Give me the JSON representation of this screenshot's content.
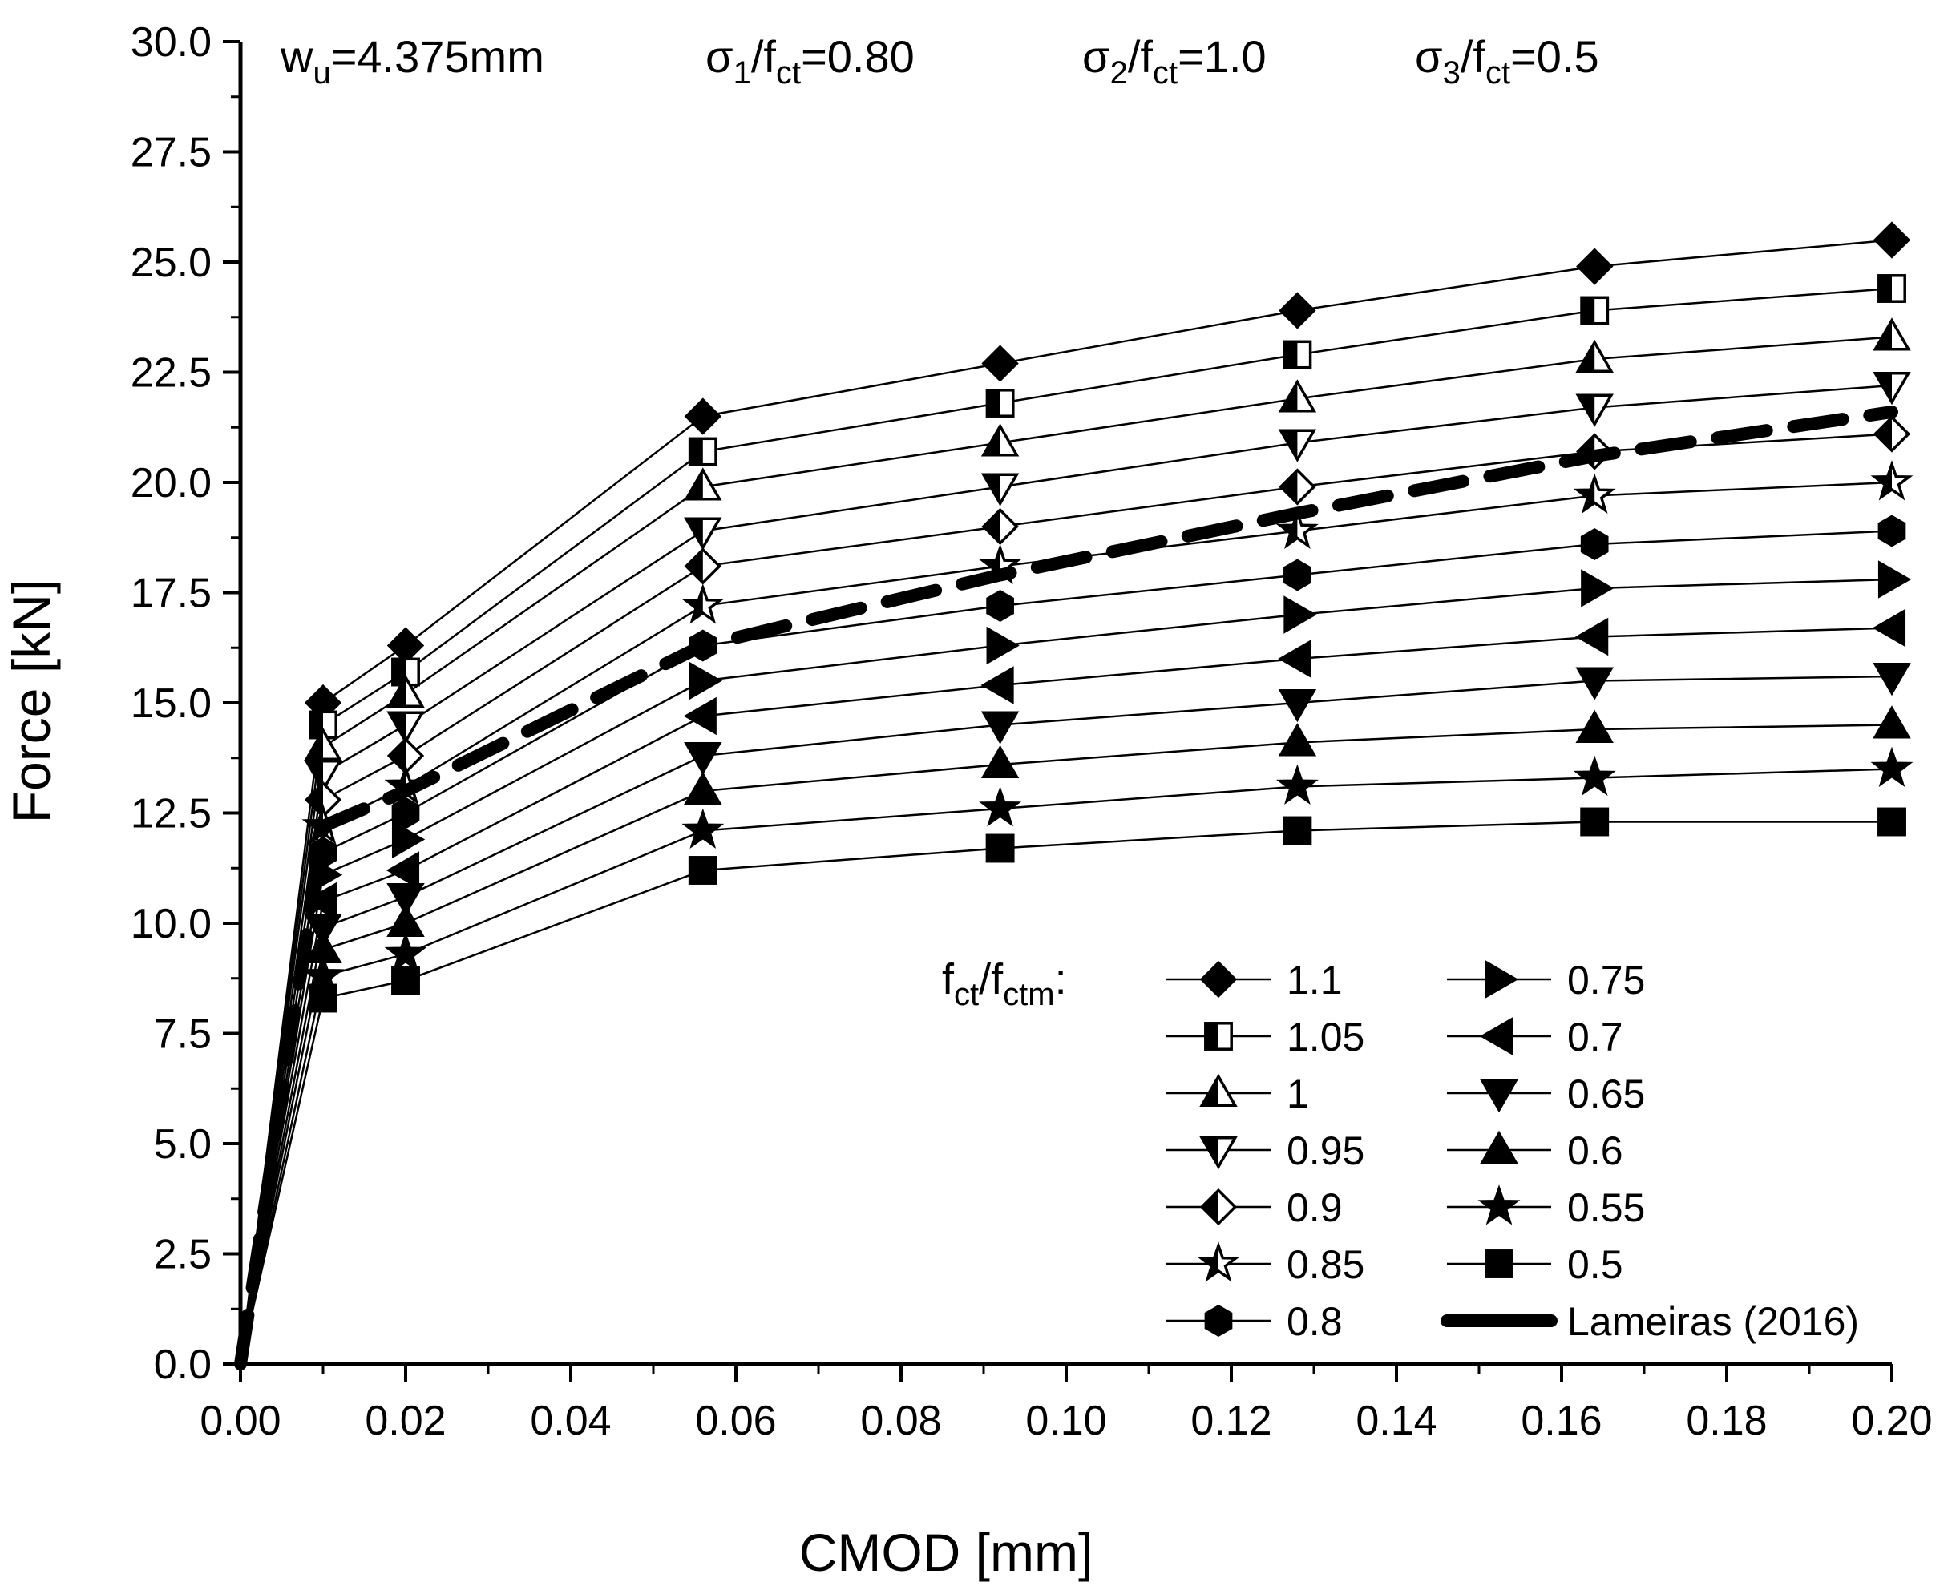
{
  "chart_data": {
    "type": "line",
    "title": "",
    "xlabel": "CMOD [mm]",
    "ylabel": "Force [kN]",
    "xlim": [
      0,
      0.2
    ],
    "ylim": [
      0,
      30
    ],
    "x_ticks": [
      "0.00",
      "0.02",
      "0.04",
      "0.06",
      "0.08",
      "0.10",
      "0.12",
      "0.14",
      "0.16",
      "0.18",
      "0.20"
    ],
    "y_ticks": [
      "0.0",
      "2.5",
      "5.0",
      "7.5",
      "10.0",
      "12.5",
      "15.0",
      "17.5",
      "20.0",
      "22.5",
      "25.0",
      "27.5",
      "30.0"
    ],
    "annotations": {
      "wu": {
        "base": "w",
        "sub": "u",
        "tail": "=4.375mm"
      },
      "s1": {
        "base": "σ",
        "sub1": "1",
        "mid": "/f",
        "sub2": "ct",
        "tail": "=0.80"
      },
      "s2": {
        "base": "σ",
        "sub1": "2",
        "mid": "/f",
        "sub2": "ct",
        "tail": "=1.0"
      },
      "s3": {
        "base": "σ",
        "sub1": "3",
        "mid": "/f",
        "sub2": "ct",
        "tail": "=0.5"
      }
    },
    "legend_title": {
      "f1": "f",
      "s1": "ct",
      "slash": "/f",
      "s2": "ctm",
      "colon": ":"
    },
    "legend_position": "bottom-right",
    "x": [
      0.0,
      0.01,
      0.02,
      0.056,
      0.092,
      0.128,
      0.164,
      0.2
    ],
    "series": [
      {
        "name": "1.1",
        "marker": "diamond",
        "fill": "full",
        "values": [
          0,
          15.0,
          16.3,
          21.5,
          22.7,
          23.9,
          24.9,
          25.5
        ]
      },
      {
        "name": "1.05",
        "marker": "square",
        "fill": "half",
        "values": [
          0,
          14.5,
          15.7,
          20.7,
          21.8,
          22.9,
          23.9,
          24.4
        ]
      },
      {
        "name": "1",
        "marker": "triangle-up",
        "fill": "half",
        "values": [
          0,
          14.0,
          15.2,
          19.9,
          20.9,
          21.9,
          22.8,
          23.3
        ]
      },
      {
        "name": "0.95",
        "marker": "triangle-down",
        "fill": "half",
        "values": [
          0,
          13.4,
          14.5,
          18.9,
          19.9,
          20.9,
          21.7,
          22.2
        ]
      },
      {
        "name": "0.9",
        "marker": "diamond",
        "fill": "half",
        "values": [
          0,
          12.8,
          13.8,
          18.1,
          19.0,
          19.9,
          20.7,
          21.1
        ]
      },
      {
        "name": "0.85",
        "marker": "star",
        "fill": "half",
        "values": [
          0,
          12.2,
          13.1,
          17.2,
          18.1,
          18.9,
          19.7,
          20.0
        ]
      },
      {
        "name": "0.8",
        "marker": "hexagon",
        "fill": "full",
        "values": [
          0,
          11.6,
          12.5,
          16.3,
          17.2,
          17.9,
          18.6,
          18.9
        ]
      },
      {
        "name": "0.75",
        "marker": "triangle-right",
        "fill": "full",
        "values": [
          0,
          11.1,
          11.9,
          15.5,
          16.3,
          17.0,
          17.6,
          17.8
        ]
      },
      {
        "name": "0.7",
        "marker": "triangle-left",
        "fill": "full",
        "values": [
          0,
          10.5,
          11.2,
          14.7,
          15.4,
          16.0,
          16.5,
          16.7
        ]
      },
      {
        "name": "0.65",
        "marker": "triangle-down",
        "fill": "full",
        "values": [
          0,
          9.9,
          10.6,
          13.8,
          14.5,
          15.0,
          15.5,
          15.6
        ]
      },
      {
        "name": "0.6",
        "marker": "triangle-up",
        "fill": "full",
        "values": [
          0,
          9.4,
          10.0,
          13.0,
          13.6,
          14.1,
          14.4,
          14.5
        ]
      },
      {
        "name": "0.55",
        "marker": "star",
        "fill": "full",
        "values": [
          0,
          8.8,
          9.3,
          12.1,
          12.6,
          13.1,
          13.3,
          13.5
        ]
      },
      {
        "name": "0.5",
        "marker": "square",
        "fill": "full",
        "values": [
          0,
          8.3,
          8.7,
          11.2,
          11.7,
          12.1,
          12.3,
          12.3
        ]
      }
    ],
    "reference": {
      "name": "Lameiras (2016)",
      "style": "dashed-thick",
      "x": [
        0.0,
        0.01,
        0.02,
        0.056,
        0.092,
        0.128,
        0.164,
        0.2
      ],
      "values": [
        0,
        12.2,
        13.0,
        16.3,
        17.9,
        19.3,
        20.6,
        21.6
      ]
    }
  }
}
